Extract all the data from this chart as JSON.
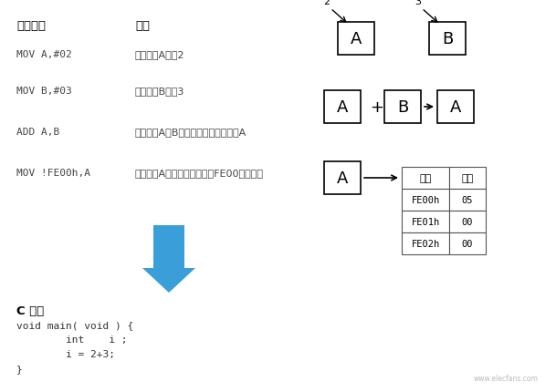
{
  "bg_color": "#ffffff",
  "title_asm": "汇编语言",
  "title_desc": "说明",
  "asm_lines": [
    [
      "MOV A,#02",
      "给寄存器A赋剗2"
    ],
    [
      "MOV B,#03",
      "给寄存器B赋剗3"
    ],
    [
      "ADD A,B",
      "将寄存器A和B的合计値赋値给寄存器A"
    ],
    [
      "MOV !FE00h,A",
      "将寄存器A的値赋値给地址为FE00的存储器"
    ]
  ],
  "c_header": "C 语言",
  "c_code": [
    "void main( void ) {",
    "        int    i ;",
    "        i = 2+3;",
    "}"
  ],
  "arrow_color": "#3a9fd8",
  "arrow_color_dark": "#2277bb",
  "box_color": "#000000",
  "table_addresses": [
    "FE00h",
    "FE01h",
    "FE02h"
  ],
  "table_data": [
    "05",
    "00",
    "00"
  ],
  "table_headers": [
    "地址",
    "数据"
  ],
  "label2": "2",
  "label3": "3",
  "watermark": "www.elecfans.com"
}
